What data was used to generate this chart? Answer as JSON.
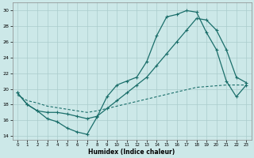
{
  "xlabel": "Humidex (Indice chaleur)",
  "bg_color": "#cce8e8",
  "line_color": "#1a6e6a",
  "grid_color": "#aacccc",
  "xlim": [
    -0.5,
    23.5
  ],
  "ylim": [
    13.5,
    31
  ],
  "xticks": [
    0,
    1,
    2,
    3,
    4,
    5,
    6,
    7,
    8,
    9,
    10,
    11,
    12,
    13,
    14,
    15,
    16,
    17,
    18,
    19,
    20,
    21,
    22,
    23
  ],
  "yticks": [
    14,
    16,
    18,
    20,
    22,
    24,
    26,
    28,
    30
  ],
  "c1y": [
    19.5,
    18.0,
    17.2,
    16.2,
    15.8,
    15.0,
    14.5,
    14.2,
    16.4,
    19.0,
    20.5,
    21.0,
    21.5,
    23.5,
    26.8,
    29.2,
    29.5,
    30.0,
    29.8,
    27.2,
    25.0,
    21.0,
    19.0,
    20.5
  ],
  "c2y": [
    19.5,
    18.0,
    17.2,
    17.0,
    17.0,
    16.8,
    16.5,
    16.2,
    16.5,
    17.5,
    18.5,
    19.5,
    20.5,
    21.5,
    23.0,
    24.5,
    26.0,
    27.5,
    29.0,
    28.8,
    27.5,
    25.0,
    21.5,
    20.8
  ],
  "c3y": [
    19.2,
    18.5,
    18.2,
    17.8,
    17.6,
    17.4,
    17.2,
    17.0,
    17.2,
    17.5,
    17.8,
    18.1,
    18.4,
    18.7,
    19.0,
    19.3,
    19.6,
    19.9,
    20.2,
    20.3,
    20.4,
    20.5,
    20.5,
    20.5
  ]
}
